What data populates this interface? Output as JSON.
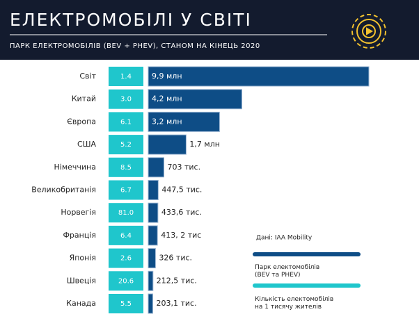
{
  "chart_data": {
    "type": "bar",
    "title": "ЕЛЕКТРОМОБІЛІ У СВІТІ",
    "subtitle": "ПАРК ЕЛЕКТРОМОБІЛІВ (BEV + PHEV), СТАНОМ НА КІНЕЦЬ 2020",
    "source": "Дані:  IAA Mobility",
    "categories": [
      "Світ",
      "Китай",
      "Європа",
      "США",
      "Німеччина",
      "Великобританія",
      "Норвегія",
      "Франція",
      "Японія",
      "Швеція",
      "Канада"
    ],
    "series": [
      {
        "name": "Кількість електомобілів на 1 тисячу жителів",
        "color": "#1fc6cc",
        "values": [
          1.4,
          3.0,
          6.1,
          5.2,
          8.5,
          6.7,
          81.0,
          6.4,
          2.6,
          20.6,
          5.5
        ],
        "value_labels": [
          "1.4",
          "3.0",
          "6.1",
          "5.2",
          "8.5",
          "6.7",
          "81.0",
          "6.4",
          "2.6",
          "20.6",
          "5.5"
        ]
      },
      {
        "name": "Парк електомобілів (BEV та PHEV)",
        "color": "#0e4d86",
        "values": [
          9.9,
          4.2,
          3.2,
          1.7,
          0.703,
          0.4475,
          0.4336,
          0.4132,
          0.326,
          0.2125,
          0.2031
        ],
        "value_labels": [
          "9,9 млн",
          "4,2 млн",
          "3,2 млн",
          "1,7 млн",
          "703 тис.",
          "447,5 тис.",
          "433,6 тис.",
          "413, 2 тис",
          "326 тис.",
          "212,5 тис.",
          "203,1 тис."
        ]
      }
    ]
  }
}
